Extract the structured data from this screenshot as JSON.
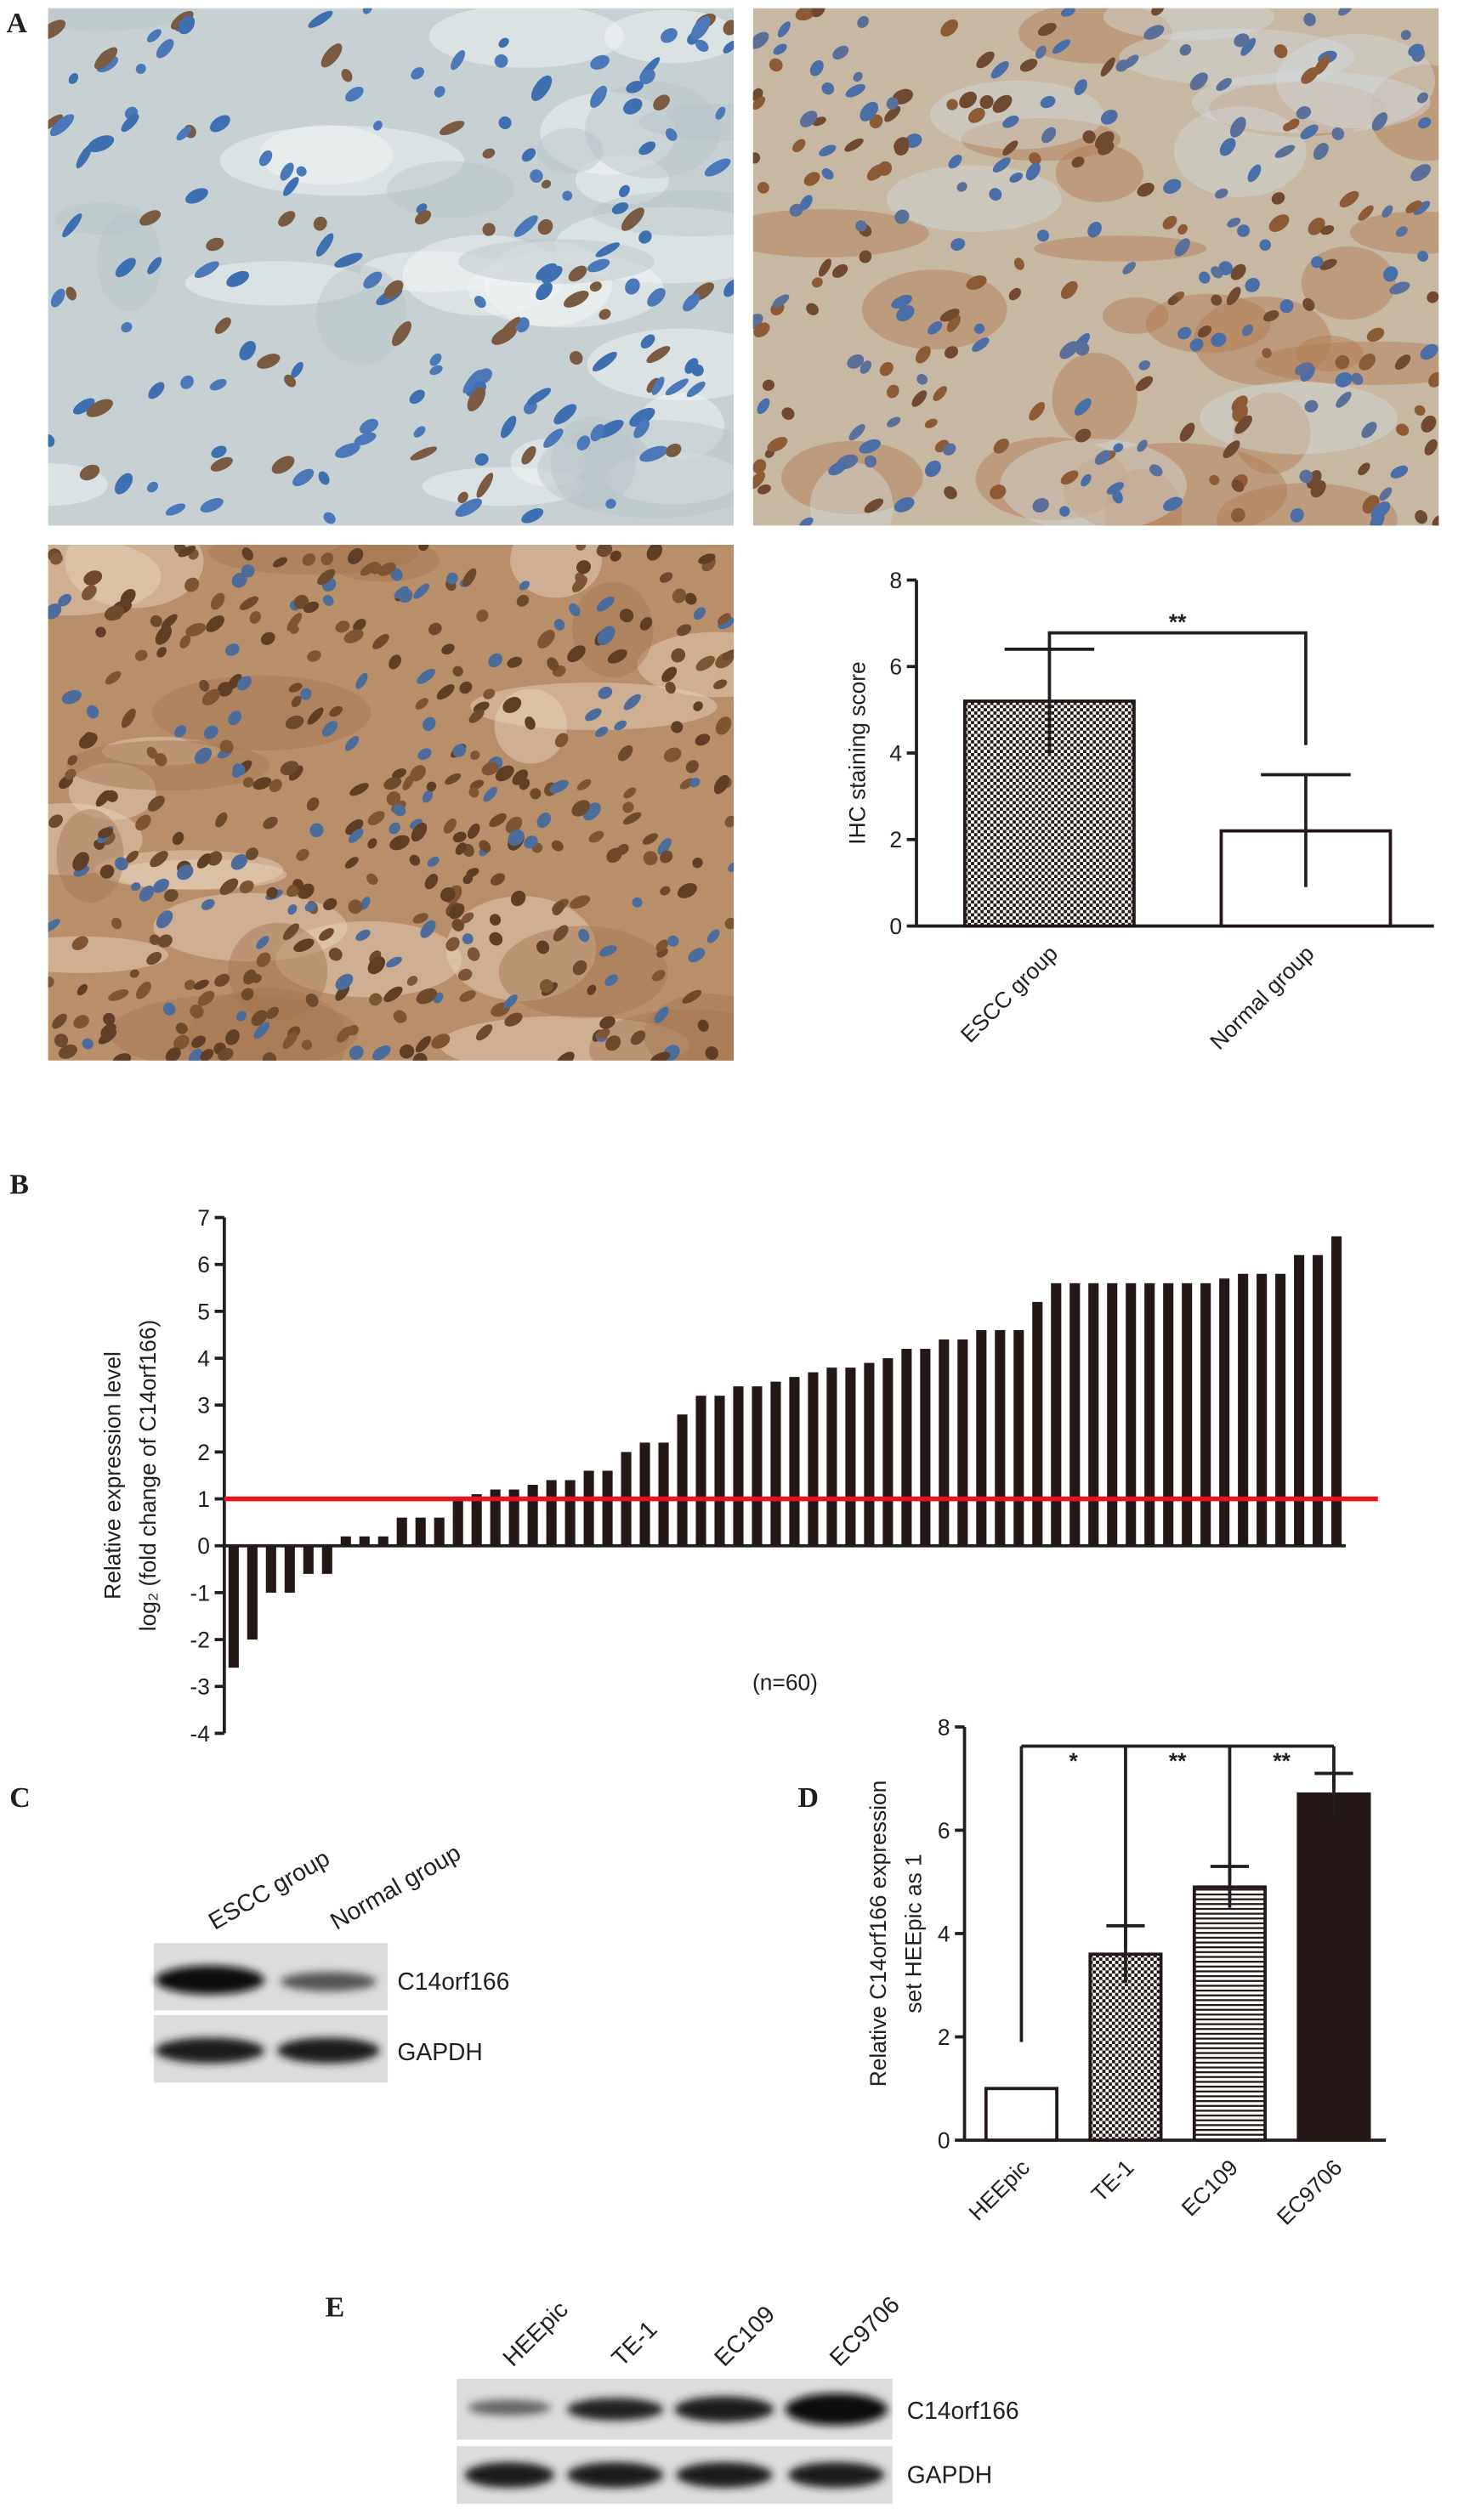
{
  "panels": [
    "A",
    "B",
    "C",
    "D",
    "E"
  ],
  "chart_data": [
    {
      "type": "bar",
      "ylabel": [
        "IHC staining score"
      ],
      "categories": [
        "ESCC group",
        "Normal group"
      ],
      "values": [
        5.2,
        2.2
      ],
      "errors": [
        1.2,
        1.3
      ],
      "color": "#231815",
      "ylim": [
        0,
        8
      ],
      "yticks": [
        0,
        2,
        4,
        6,
        8
      ],
      "annotations": [
        "**"
      ]
    },
    {
      "type": "bar",
      "ylabel": [
        "Relative expression level",
        "log₂ (fold change of C14orf166)"
      ],
      "values": [
        -2.6,
        -2.0,
        -1.0,
        -1.0,
        -0.6,
        -0.6,
        0.2,
        0.2,
        0.2,
        0.6,
        0.6,
        0.6,
        1.0,
        1.1,
        1.2,
        1.2,
        1.3,
        1.4,
        1.4,
        1.6,
        1.6,
        2.0,
        2.2,
        2.2,
        2.8,
        3.2,
        3.2,
        3.4,
        3.4,
        3.5,
        3.6,
        3.7,
        3.8,
        3.8,
        3.9,
        4.0,
        4.2,
        4.2,
        4.4,
        4.4,
        4.6,
        4.6,
        4.6,
        5.2,
        5.6,
        5.6,
        5.6,
        5.6,
        5.6,
        5.6,
        5.6,
        5.6,
        5.6,
        5.7,
        5.8,
        5.8,
        5.8,
        6.2,
        6.2,
        6.6
      ],
      "color": "#231815",
      "ylim": [
        -4,
        7
      ],
      "yticks": [
        -4,
        -3,
        -2,
        -1,
        0,
        1,
        2,
        3,
        4,
        5,
        6,
        7
      ],
      "reference_line": 1,
      "reference_color": "#e8141b",
      "annotations": [
        "(n=60)"
      ]
    },
    {
      "type": "bar",
      "ylabel": [
        "Relative C14orf166 expression",
        "set HEEpic as 1"
      ],
      "categories": [
        "HEEpic",
        "TE-1",
        "EC109",
        "EC9706"
      ],
      "values": [
        1.0,
        3.6,
        4.9,
        6.7
      ],
      "errors": [
        0,
        0.55,
        0.4,
        0.4
      ],
      "color": "#231815",
      "ylim": [
        0,
        8
      ],
      "yticks": [
        0,
        2,
        4,
        6,
        8
      ],
      "annotations": [
        "*",
        "**",
        "**"
      ]
    }
  ],
  "blots": [
    {
      "lanes": [
        "ESCC group",
        "Normal group"
      ],
      "proteins": [
        "C14orf166",
        "GAPDH"
      ]
    },
    {
      "lanes": [
        "HEEpic",
        "TE-1",
        "EC109",
        "EC9706"
      ],
      "proteins": [
        "C14orf166",
        "GAPDH"
      ]
    }
  ]
}
